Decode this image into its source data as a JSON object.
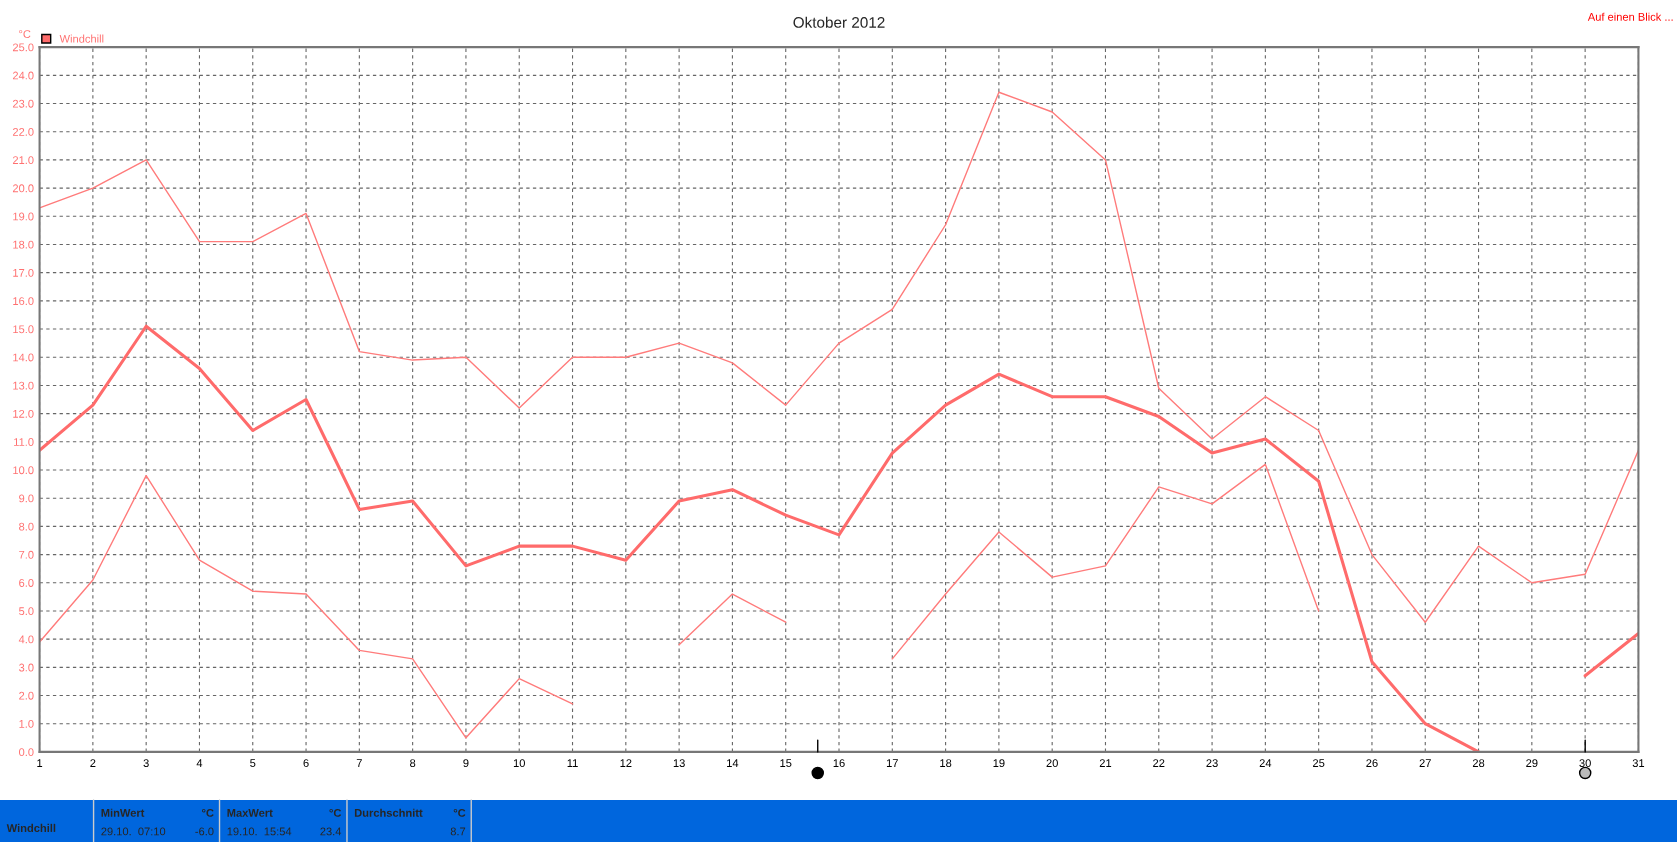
{
  "chart_data": {
    "type": "line",
    "title": "Oktober 2012",
    "ylabel": "°C",
    "x": [
      1,
      2,
      3,
      4,
      5,
      6,
      7,
      8,
      9,
      10,
      11,
      12,
      13,
      14,
      15,
      16,
      17,
      18,
      19,
      20,
      21,
      22,
      23,
      24,
      25,
      26,
      27,
      28,
      29,
      30,
      31
    ],
    "series": [
      {
        "color": "#ff7b7b",
        "values": [
          19.3,
          20.0,
          21.0,
          18.1,
          18.1,
          19.1,
          14.2,
          13.9,
          14.0,
          12.2,
          14.0,
          14.0,
          14.5,
          13.8,
          12.3,
          14.5,
          15.7,
          18.7,
          23.4,
          22.7,
          21.0,
          12.9,
          11.1,
          12.6,
          11.4,
          7.0,
          4.6,
          7.3,
          6.0,
          6.3,
          10.7
        ]
      },
      {
        "name": "Windchill",
        "color": "#ff6b6b",
        "values": [
          10.7,
          12.3,
          15.1,
          13.6,
          11.4,
          12.5,
          8.6,
          8.9,
          6.6,
          7.3,
          7.3,
          6.8,
          8.9,
          9.3,
          8.4,
          7.7,
          10.6,
          12.3,
          13.4,
          12.6,
          12.6,
          11.9,
          10.6,
          11.1,
          9.6,
          3.2,
          1.0,
          0.0,
          null,
          2.7,
          4.2
        ]
      },
      {
        "color": "#ff7b7b",
        "values": [
          3.9,
          6.1,
          9.8,
          6.8,
          5.7,
          5.6,
          3.6,
          3.3,
          0.5,
          2.6,
          1.7,
          null,
          3.8,
          5.6,
          4.6,
          null,
          3.3,
          5.6,
          7.8,
          6.2,
          6.6,
          9.4,
          8.8,
          10.2,
          5.0,
          null,
          null,
          null,
          null,
          null,
          null
        ]
      }
    ],
    "xlim": [
      1,
      31
    ],
    "xticks": [
      1,
      2,
      3,
      4,
      5,
      6,
      7,
      8,
      9,
      10,
      11,
      12,
      13,
      14,
      15,
      16,
      17,
      18,
      19,
      20,
      21,
      22,
      23,
      24,
      25,
      26,
      27,
      28,
      29,
      30,
      31
    ],
    "ylim": [
      0,
      25
    ],
    "yticks": [
      {
        "value": 0,
        "label": "0.0"
      },
      {
        "value": 1,
        "label": "1.0"
      },
      {
        "value": 2,
        "label": "2.0"
      },
      {
        "value": 3,
        "label": "3.0"
      },
      {
        "value": 4,
        "label": "4.0"
      },
      {
        "value": 5,
        "label": "5.0"
      },
      {
        "value": 6,
        "label": "6.0"
      },
      {
        "value": 7,
        "label": "7.0"
      },
      {
        "value": 8,
        "label": "8.0"
      },
      {
        "value": 9,
        "label": "9.0"
      },
      {
        "value": 10,
        "label": "10.0"
      },
      {
        "value": 11,
        "label": "11.0"
      },
      {
        "value": 12,
        "label": "12.0"
      },
      {
        "value": 13,
        "label": "13.0"
      },
      {
        "value": 14,
        "label": "14.0"
      },
      {
        "value": 15,
        "label": "15.0"
      },
      {
        "value": 16,
        "label": "16.0"
      },
      {
        "value": 17,
        "label": "17.0"
      },
      {
        "value": 18,
        "label": "18.0"
      },
      {
        "value": 19,
        "label": "19.0"
      },
      {
        "value": 20,
        "label": "20.0"
      },
      {
        "value": 21,
        "label": "21.0"
      },
      {
        "value": 22,
        "label": "22.0"
      },
      {
        "value": 23,
        "label": "23.0"
      },
      {
        "value": 24,
        "label": "24.0"
      },
      {
        "value": 25,
        "label": "25.0"
      }
    ],
    "grid": true,
    "legend": "top left",
    "marker": "none",
    "line_style": "solid",
    "annotations": [
      "Auf einen Blick ...",
      "Windchill",
      "MinWert",
      "°C",
      "29.10.  07:10",
      "-6.0",
      "MaxWert",
      "°C",
      "19.10.  15:54",
      "23.4",
      "Durchschnitt",
      "°C",
      "8.7"
    ]
  }
}
